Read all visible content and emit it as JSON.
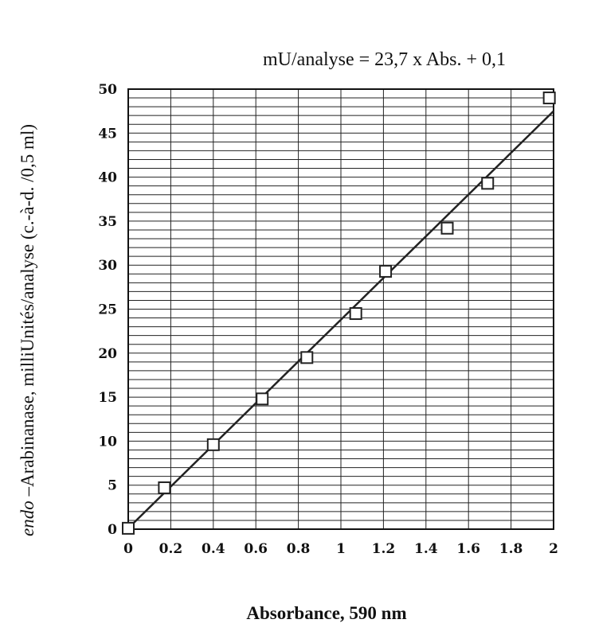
{
  "chart_data": {
    "type": "scatter",
    "title": "",
    "equation": "mU/analyse = 23,7 x Abs. + 0,1",
    "xlabel": "Absorbance,  590 nm",
    "ylabel_italic": "endo",
    "ylabel_rest": " –Arabinanase, milliUnités/analyse (c.-à-d. /0,5 ml)",
    "xlim": [
      0,
      2
    ],
    "ylim": [
      0,
      50
    ],
    "x_ticks": [
      "0",
      "0.2",
      "0.4",
      "0.6",
      "0.8",
      "1",
      "1.2",
      "1.4",
      "1.6",
      "1.8",
      "2"
    ],
    "y_ticks": [
      "0",
      "5",
      "10",
      "15",
      "20",
      "25",
      "30",
      "35",
      "40",
      "45",
      "50"
    ],
    "grid": true,
    "series": [
      {
        "x": [
          0,
          0.17,
          0.4,
          0.63,
          0.84,
          1.07,
          1.21,
          1.5,
          1.69,
          1.98
        ],
        "y": [
          0.1,
          4.7,
          9.6,
          14.8,
          19.5,
          24.5,
          29.3,
          34.2,
          39.3,
          49.0
        ]
      }
    ],
    "fit": {
      "slope": 23.7,
      "intercept": 0.1
    }
  }
}
